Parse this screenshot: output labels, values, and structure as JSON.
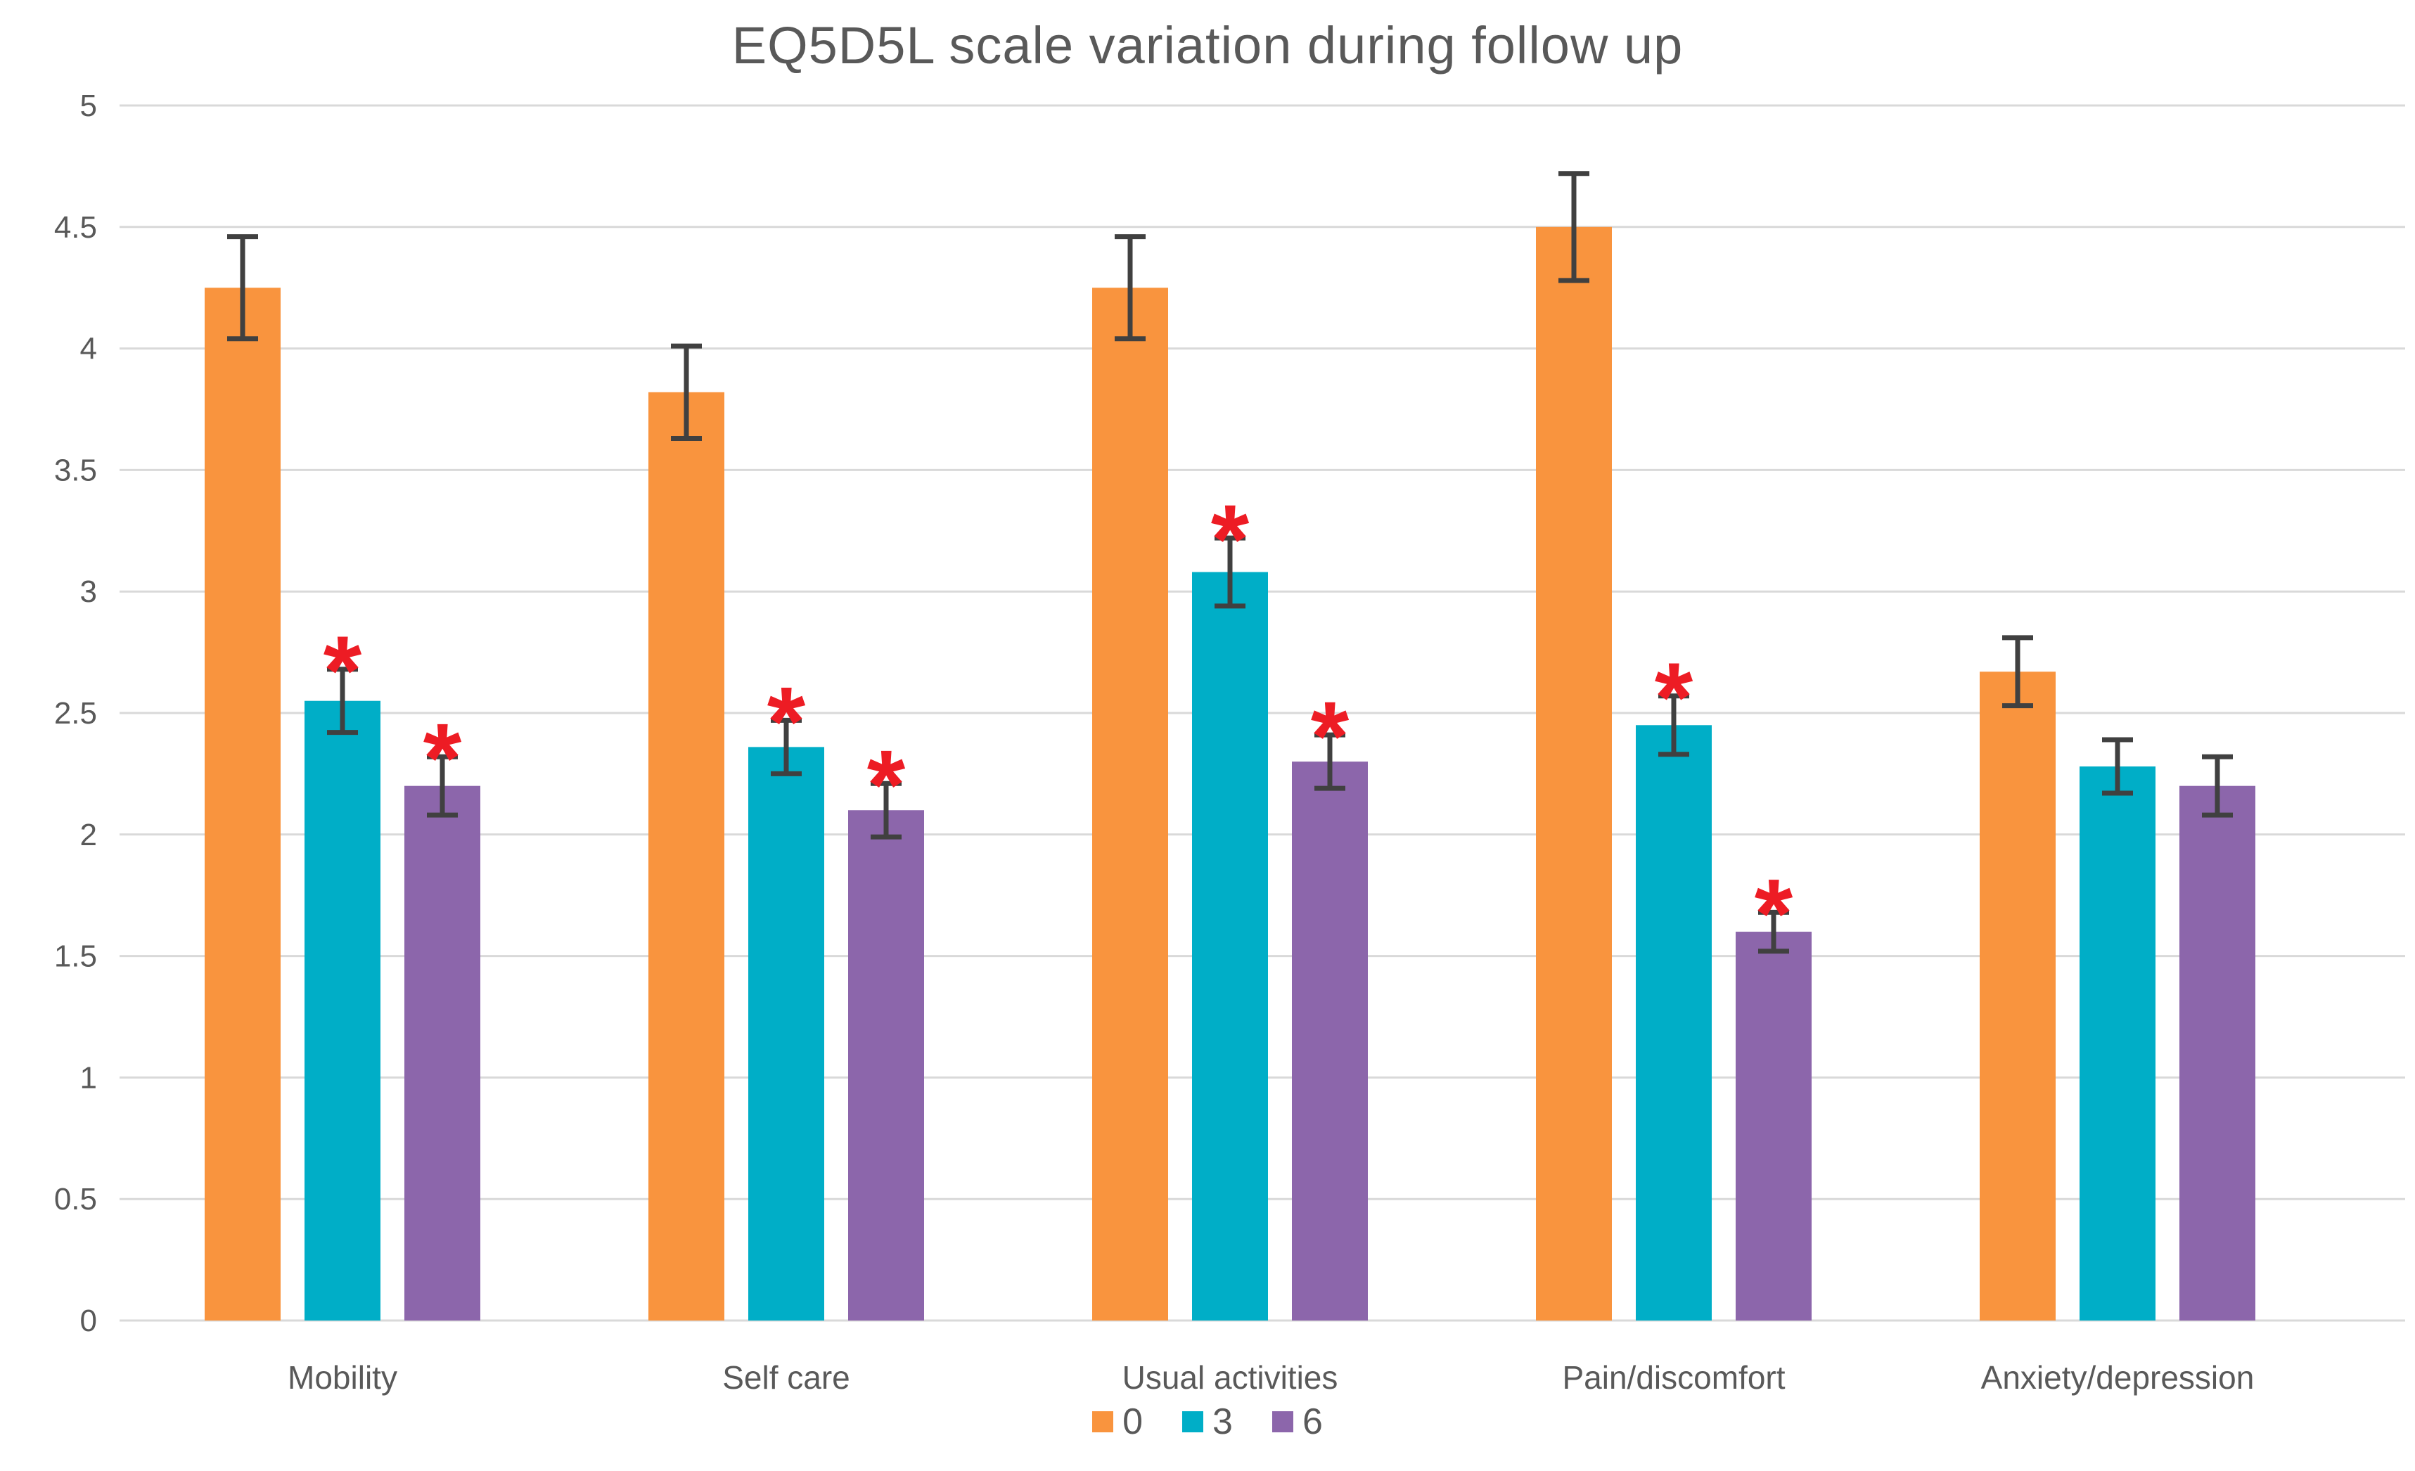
{
  "chart_data": {
    "type": "bar",
    "title": "EQ5D5L scale variation during follow up",
    "categories": [
      "Mobility",
      "Self care",
      "Usual activities",
      "Pain/discomfort",
      "Anxiety/depression"
    ],
    "series": [
      {
        "name": "0",
        "color": "#F9943E",
        "values": [
          4.25,
          3.82,
          4.25,
          4.5,
          2.67
        ],
        "errors": [
          0.21,
          0.19,
          0.21,
          0.22,
          0.14
        ],
        "significant": [
          false,
          false,
          false,
          false,
          false
        ]
      },
      {
        "name": "3",
        "color": "#00AEC7",
        "values": [
          2.55,
          2.36,
          3.08,
          2.45,
          2.28
        ],
        "errors": [
          0.13,
          0.11,
          0.14,
          0.12,
          0.11
        ],
        "significant": [
          true,
          true,
          true,
          true,
          false
        ]
      },
      {
        "name": "6",
        "color": "#8C66AB",
        "values": [
          2.2,
          2.1,
          2.3,
          1.6,
          2.2
        ],
        "errors": [
          0.12,
          0.11,
          0.11,
          0.08,
          0.12
        ],
        "significant": [
          true,
          true,
          true,
          true,
          false
        ]
      }
    ],
    "ylim": [
      0,
      5
    ],
    "ytick_step": 0.5,
    "yticks": [
      "0",
      "0.5",
      "1",
      "1.5",
      "2",
      "2.5",
      "3",
      "3.5",
      "4",
      "4.5",
      "5"
    ],
    "grid": true,
    "legend_position": "bottom",
    "annotations": {
      "significance_marker": "*",
      "marker_color": "#ED1C24"
    },
    "error_bar_color": "#404040",
    "gridline_color": "#D9D9D9",
    "text_color": "#595959"
  }
}
